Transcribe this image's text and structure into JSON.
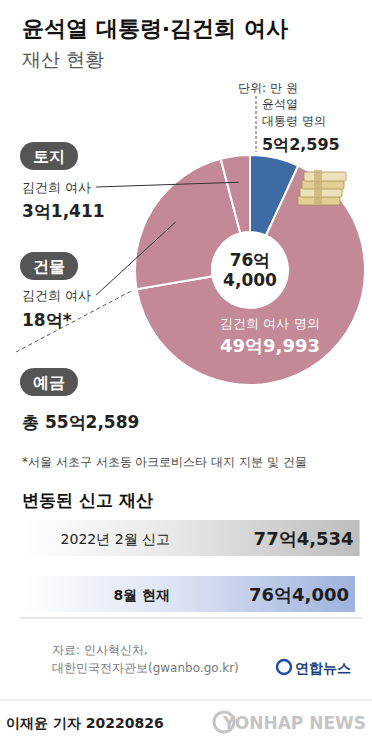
{
  "title": "윤석열 대통령·김건희 여사",
  "subtitle": "재산 현황",
  "unit": "단위: 만 원",
  "chart_data": [
    {
      "type": "pie",
      "categories": [
        "윤석열\n대통령 명의",
        "김건희 여사 명의",
        "김건희 여사",
        "김건희 여사"
      ],
      "values": [
        52595,
        499993,
        180000,
        31411
      ],
      "value_labels": [
        "5억2,595",
        "49억9,993",
        "18억*",
        "3억1,411"
      ],
      "colors": [
        "#3e6aa6",
        "#c48996",
        "#c48996",
        "#c48996"
      ],
      "groups": [
        "예금",
        "예금",
        "건물",
        "토지"
      ],
      "group_total": {
        "group": "예금",
        "value": 552589,
        "label": "총 55억2,589"
      },
      "total": 764000,
      "total_label": "76억\n4,000",
      "data_labels": true,
      "footnote": "*서울 서초구 서초동 아크로비스타 대지 지분 및 건물"
    },
    {
      "type": "bar",
      "title": "변동된 신고 재산",
      "orientation": "horizontal",
      "categories": [
        "2022년 2월 신고",
        "8월 현재"
      ],
      "values": [
        774534,
        764000
      ],
      "value_labels": [
        "77억4,534",
        "76억4,000"
      ],
      "colors": [
        "#bdbdbd",
        "#9fb2dd"
      ],
      "xlim": [
        0,
        780000
      ],
      "tick_labels": false,
      "data_labels": true
    }
  ],
  "source": "자료: 인사혁신처,\n대한민국전자관보(gwanbo.go.kr)",
  "logo": "연합뉴스",
  "byline": "이재윤 기자 20220826",
  "watermark": "YONHAP NEWS"
}
